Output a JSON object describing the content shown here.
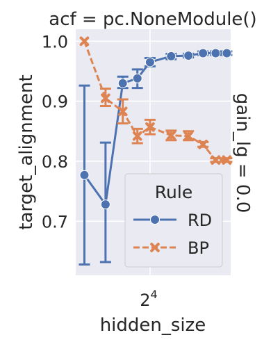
{
  "chart_data": {
    "type": "line",
    "title": "acf = pc.NoneModule()",
    "facet_label": "gain_lg = 0.0",
    "xlabel": "hidden_size",
    "ylabel": "target_alignment",
    "x_scale": "log2",
    "x_ticks": [
      {
        "value": 16,
        "base": "2",
        "exp": "4"
      }
    ],
    "ylim": [
      0.61,
      1.02
    ],
    "y_ticks": [
      "0.7",
      "0.8",
      "0.9",
      "1.0"
    ],
    "grid": true,
    "legend": {
      "title": "Rule",
      "position": "lower-right"
    },
    "x": [
      8,
      10,
      12,
      14,
      16,
      20,
      24,
      28,
      32,
      36
    ],
    "series": [
      {
        "name": "RD",
        "color": "#4c72b0",
        "marker": "circle",
        "linestyle": "solid",
        "values": [
          0.777,
          0.728,
          0.93,
          0.938,
          0.965,
          0.975,
          0.976,
          0.98,
          0.98,
          0.98
        ],
        "err_low": [
          0.628,
          0.632,
          0.922,
          0.922,
          0.958,
          0.97,
          0.973,
          0.977,
          0.977,
          0.977
        ],
        "err_high": [
          0.926,
          0.831,
          0.941,
          0.953,
          0.972,
          0.979,
          0.979,
          0.983,
          0.983,
          0.983
        ]
      },
      {
        "name": "BP",
        "color": "#dd8452",
        "marker": "x",
        "linestyle": "dashed",
        "values": [
          1.0,
          0.905,
          0.883,
          0.842,
          0.857,
          0.843,
          0.842,
          0.828,
          0.802,
          0.802
        ],
        "err_low": [
          1.0,
          0.892,
          0.863,
          0.83,
          0.845,
          0.835,
          0.835,
          0.824,
          0.799,
          0.799
        ],
        "err_high": [
          1.0,
          0.921,
          0.903,
          0.854,
          0.869,
          0.851,
          0.85,
          0.832,
          0.805,
          0.805
        ]
      }
    ]
  }
}
